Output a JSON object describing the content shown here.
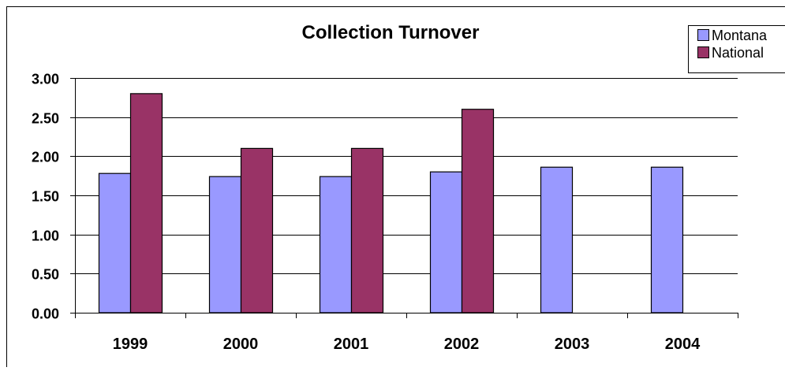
{
  "chart_data": {
    "type": "bar",
    "title": "Collection Turnover",
    "categories": [
      "1999",
      "2000",
      "2001",
      "2002",
      "2003",
      "2004"
    ],
    "series": [
      {
        "name": "Montana",
        "values": [
          1.78,
          1.74,
          1.74,
          1.8,
          1.86,
          1.86
        ],
        "color": "#9999ff"
      },
      {
        "name": "National",
        "values": [
          2.8,
          2.1,
          2.1,
          2.6,
          null,
          null
        ],
        "color": "#993366"
      }
    ],
    "y_ticks": [
      "0.00",
      "0.50",
      "1.00",
      "1.50",
      "2.00",
      "2.50",
      "3.00"
    ],
    "ylim": [
      0,
      3
    ],
    "grid": true,
    "legend_position": "top-right",
    "xlabel": "",
    "ylabel": ""
  }
}
